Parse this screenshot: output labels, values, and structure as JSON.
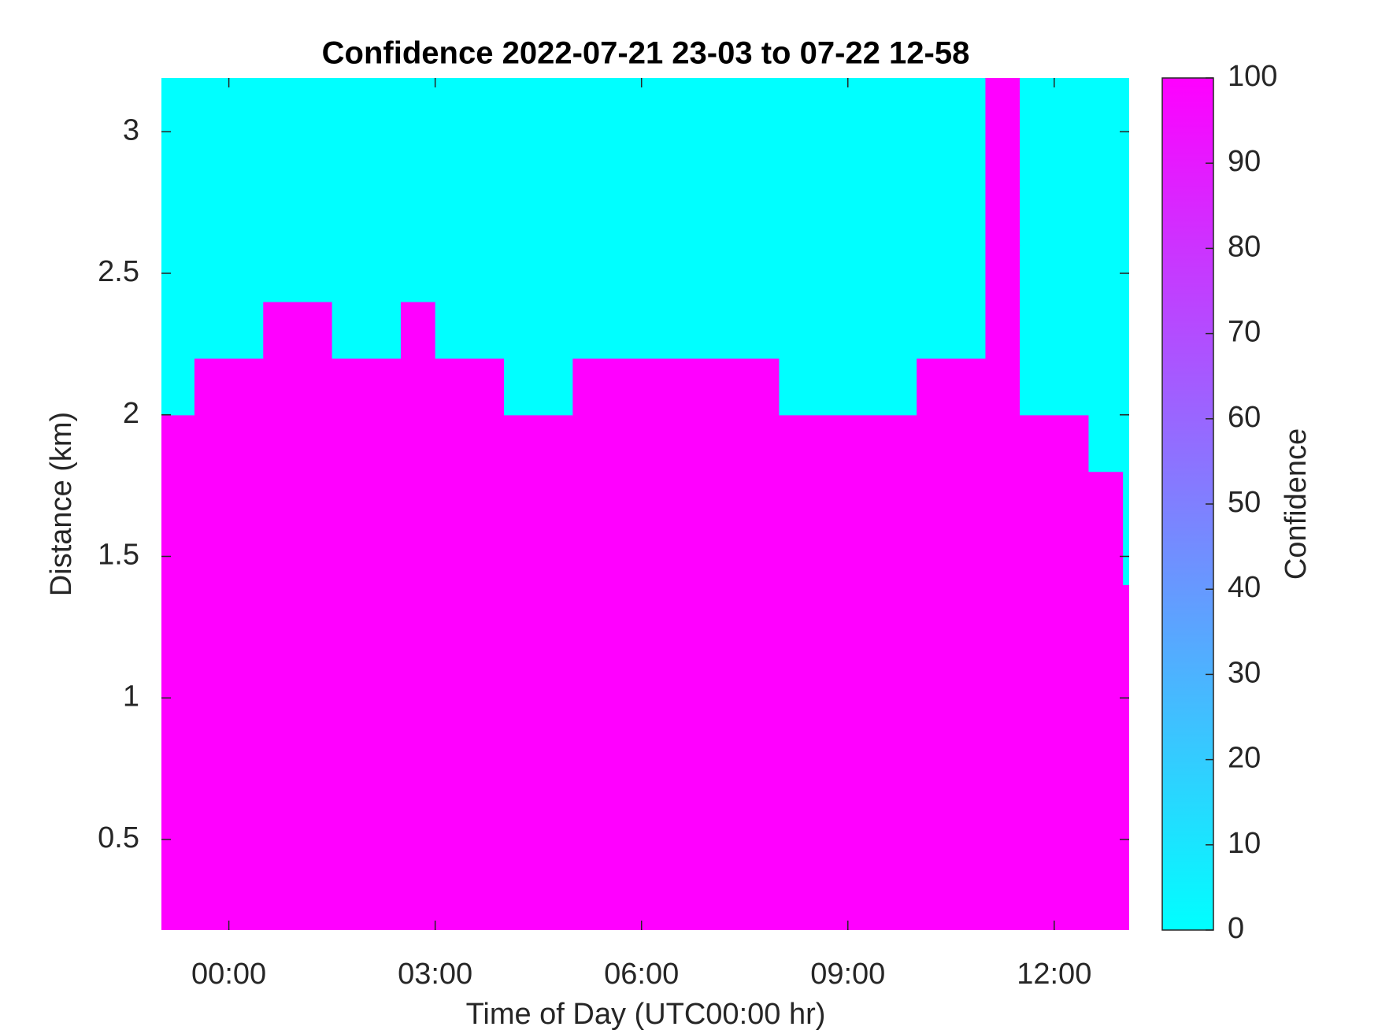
{
  "chart_data": {
    "type": "heatmap",
    "title": "Confidence 2022-07-21 23-03 to 07-22 12-58",
    "xlabel": "Time of Day (UTC00:00 hr)",
    "ylabel": "Distance (km)",
    "colorbar_label": "Confidence",
    "colormap": [
      "#00ffff",
      "#ff00ff"
    ],
    "x": [
      -0.75,
      -0.25,
      0.25,
      0.75,
      1.25,
      1.75,
      2.25,
      2.75,
      3.25,
      3.75,
      4.25,
      4.75,
      5.25,
      5.75,
      6.25,
      6.75,
      7.25,
      7.75,
      8.25,
      8.75,
      9.25,
      9.75,
      10.25,
      10.75,
      11.25,
      11.75,
      12.25,
      12.75,
      13.25
    ],
    "y": [
      0.3,
      0.5,
      0.7,
      0.9,
      1.1,
      1.3,
      1.5,
      1.7,
      1.9,
      2.1,
      2.3,
      2.5,
      2.7,
      2.9,
      3.1
    ],
    "z": [
      [
        100,
        100,
        100,
        100,
        100,
        100,
        100,
        100,
        100,
        100,
        100,
        100,
        100,
        100,
        100,
        100,
        100,
        100,
        100,
        100,
        100,
        100,
        100,
        100,
        100,
        100,
        100,
        100,
        100
      ],
      [
        100,
        100,
        100,
        100,
        100,
        100,
        100,
        100,
        100,
        100,
        100,
        100,
        100,
        100,
        100,
        100,
        100,
        100,
        100,
        100,
        100,
        100,
        100,
        100,
        100,
        100,
        100,
        100,
        100
      ],
      [
        100,
        100,
        100,
        100,
        100,
        100,
        100,
        100,
        100,
        100,
        100,
        100,
        100,
        100,
        100,
        100,
        100,
        100,
        100,
        100,
        100,
        100,
        100,
        100,
        100,
        100,
        100,
        100,
        100
      ],
      [
        100,
        100,
        100,
        100,
        100,
        100,
        100,
        100,
        100,
        100,
        100,
        100,
        100,
        100,
        100,
        100,
        100,
        100,
        100,
        100,
        100,
        100,
        100,
        100,
        100,
        100,
        100,
        100,
        100
      ],
      [
        100,
        100,
        100,
        100,
        100,
        100,
        100,
        100,
        100,
        100,
        100,
        100,
        100,
        100,
        100,
        100,
        100,
        100,
        100,
        100,
        100,
        100,
        100,
        100,
        100,
        100,
        100,
        100,
        100
      ],
      [
        100,
        100,
        100,
        100,
        100,
        100,
        100,
        100,
        100,
        100,
        100,
        100,
        100,
        100,
        100,
        100,
        100,
        100,
        100,
        100,
        100,
        100,
        100,
        100,
        100,
        100,
        100,
        100,
        100
      ],
      [
        100,
        100,
        100,
        100,
        100,
        100,
        100,
        100,
        100,
        100,
        100,
        100,
        100,
        100,
        100,
        100,
        100,
        100,
        100,
        100,
        100,
        100,
        100,
        100,
        100,
        100,
        100,
        100,
        0
      ],
      [
        100,
        100,
        100,
        100,
        100,
        100,
        100,
        100,
        100,
        100,
        100,
        100,
        100,
        100,
        100,
        100,
        100,
        100,
        100,
        100,
        100,
        100,
        100,
        100,
        100,
        100,
        100,
        100,
        0
      ],
      [
        100,
        100,
        100,
        100,
        100,
        100,
        100,
        100,
        100,
        100,
        100,
        100,
        100,
        100,
        100,
        100,
        100,
        100,
        100,
        100,
        100,
        100,
        100,
        100,
        100,
        100,
        100,
        0,
        0
      ],
      [
        0,
        100,
        100,
        100,
        100,
        100,
        100,
        100,
        100,
        100,
        0,
        0,
        100,
        100,
        100,
        100,
        100,
        100,
        0,
        0,
        0,
        0,
        100,
        100,
        100,
        0,
        0,
        0,
        0
      ],
      [
        0,
        0,
        0,
        100,
        100,
        0,
        0,
        100,
        0,
        0,
        0,
        0,
        0,
        0,
        0,
        0,
        0,
        0,
        0,
        0,
        0,
        0,
        0,
        0,
        100,
        0,
        0,
        0,
        0
      ],
      [
        0,
        0,
        0,
        0,
        0,
        0,
        0,
        0,
        0,
        0,
        0,
        0,
        0,
        0,
        0,
        0,
        0,
        0,
        0,
        0,
        0,
        0,
        0,
        0,
        100,
        0,
        0,
        0,
        0
      ],
      [
        0,
        0,
        0,
        0,
        0,
        0,
        0,
        0,
        0,
        0,
        0,
        0,
        0,
        0,
        0,
        0,
        0,
        0,
        0,
        0,
        0,
        0,
        0,
        0,
        100,
        0,
        0,
        0,
        0
      ],
      [
        0,
        0,
        0,
        0,
        0,
        0,
        0,
        0,
        0,
        0,
        0,
        0,
        0,
        0,
        0,
        0,
        0,
        0,
        0,
        0,
        0,
        0,
        0,
        0,
        100,
        0,
        0,
        0,
        0
      ],
      [
        0,
        0,
        0,
        0,
        0,
        0,
        0,
        0,
        0,
        0,
        0,
        0,
        0,
        0,
        0,
        0,
        0,
        0,
        0,
        0,
        0,
        0,
        0,
        0,
        100,
        0,
        0,
        0,
        0
      ]
    ],
    "xlim": [
      -0.98,
      13.09
    ],
    "xticks": [
      {
        "value": 0,
        "label": "00:00"
      },
      {
        "value": 3,
        "label": "03:00"
      },
      {
        "value": 6,
        "label": "06:00"
      },
      {
        "value": 9,
        "label": "09:00"
      },
      {
        "value": 12,
        "label": "12:00"
      }
    ],
    "ylim": [
      0.18,
      3.19
    ],
    "yticks": [
      0.5,
      1,
      1.5,
      2,
      2.5,
      3
    ],
    "clim": [
      0,
      100
    ],
    "cticks": [
      0,
      10,
      20,
      30,
      40,
      50,
      60,
      70,
      80,
      90,
      100
    ]
  }
}
